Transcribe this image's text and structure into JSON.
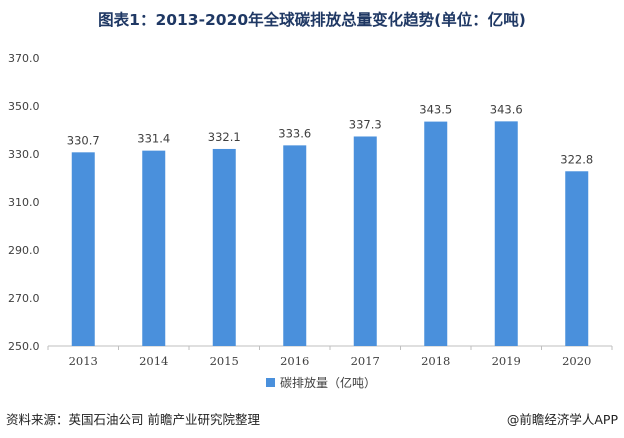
{
  "title": "图表1：2013-2020年全球碳排放总量变化趋势(单位：亿吨)",
  "source": "资料来源：英国石油公司 前瞻产业研究院整理",
  "brand": "@前瞻经济学人APP",
  "colors": {
    "bar": "#4a90dc",
    "axis": "#bfbfbf",
    "text": "#404040",
    "title": "#1f3864"
  },
  "chart_data": {
    "type": "bar",
    "categories": [
      "2013",
      "2014",
      "2015",
      "2016",
      "2017",
      "2018",
      "2019",
      "2020"
    ],
    "series": [
      {
        "name": "碳排放量（亿吨）",
        "values": [
          330.7,
          331.4,
          332.1,
          333.6,
          337.3,
          343.5,
          343.6,
          322.8
        ]
      }
    ],
    "data_labels": [
      "330.7",
      "331.4",
      "332.1",
      "333.6",
      "337.3",
      "343.5",
      "343.6",
      "322.8"
    ],
    "y_ticks": [
      "250.0",
      "270.0",
      "290.0",
      "310.0",
      "330.0",
      "350.0",
      "370.0"
    ],
    "ylim": [
      250,
      370
    ],
    "grid": false,
    "legend_position": "bottom"
  }
}
